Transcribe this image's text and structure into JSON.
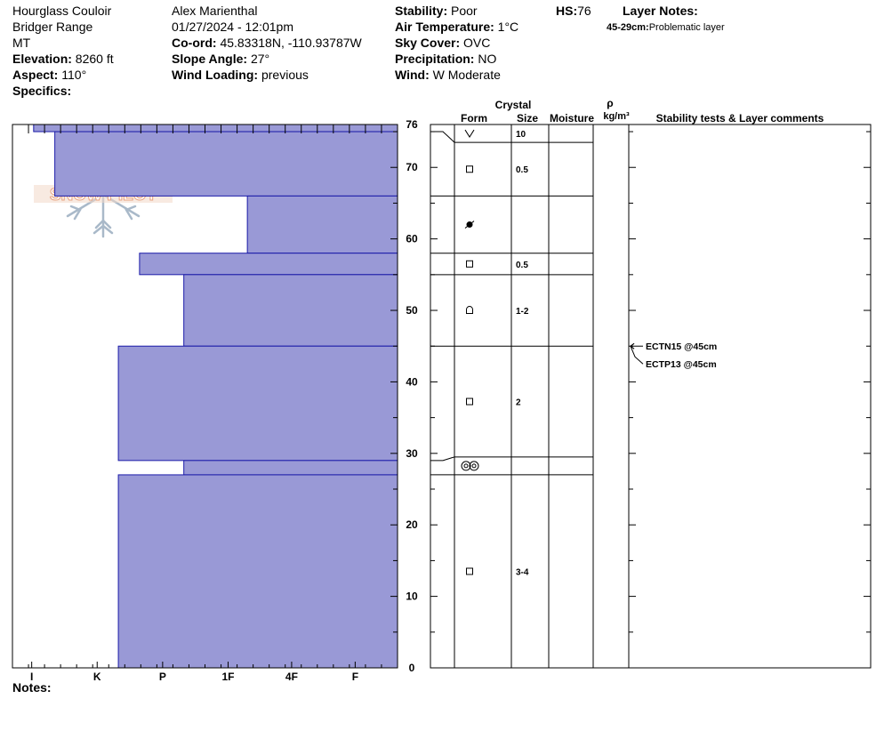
{
  "header": {
    "location": "Hourglass Couloir",
    "range": "Bridger Range",
    "state": "MT",
    "elevation_label": "Elevation:",
    "elevation_value": "8260 ft",
    "aspect_label": "Aspect:",
    "aspect_value": "110°",
    "specifics_label": "Specifics:",
    "observer": "Alex Marienthal",
    "datetime": "01/27/2024 - 12:01pm",
    "coord_label": "Co-ord:",
    "coord_value": "45.83318N, -110.93787W",
    "slope_label": "Slope Angle:",
    "slope_value": "27°",
    "wind_loading_label": "Wind Loading:",
    "wind_loading_value": "previous",
    "stability_label": "Stability:",
    "stability_value": "Poor",
    "air_temp_label": "Air Temperature:",
    "air_temp_value": "1°C",
    "sky_label": "Sky Cover:",
    "sky_value": "OVC",
    "precip_label": "Precipitation:",
    "precip_value": "NO",
    "wind_label": "Wind:",
    "wind_value": "W Moderate",
    "hs_label": "HS:",
    "hs_value": "76",
    "layer_notes_label": "Layer Notes:",
    "layer_note_range": "45-29cm:",
    "layer_note_text": "Problematic layer"
  },
  "logo_text": "SNOW PILOT",
  "notes_label": "Notes:",
  "columns": {
    "crystal": "Crystal",
    "form": "Form",
    "size": "Size",
    "moisture": "Moisture",
    "rho": "ρ",
    "density_unit": "kg/m³",
    "stability": "Stability tests & Layer comments"
  },
  "chart_data": {
    "type": "bar",
    "orientation": "horizontal-step",
    "title": "",
    "ylabel": "",
    "xlabel": "",
    "ylim": [
      0,
      76
    ],
    "y_ticks": [
      0,
      10,
      20,
      30,
      40,
      50,
      60,
      70,
      76
    ],
    "hardness_scale": [
      "I",
      "K",
      "P",
      "1F",
      "4F",
      "F"
    ],
    "hardness_tick_fraction": [
      0.05,
      0.22,
      0.39,
      0.56,
      0.725,
      0.89
    ],
    "layers": [
      {
        "top": 76,
        "bottom": 75,
        "hardness": 0.055
      },
      {
        "top": 75,
        "bottom": 66,
        "hardness": 0.11
      },
      {
        "top": 66,
        "bottom": 58,
        "hardness": 0.61
      },
      {
        "top": 58,
        "bottom": 55,
        "hardness": 0.33
      },
      {
        "top": 55,
        "bottom": 45,
        "hardness": 0.445
      },
      {
        "top": 45,
        "bottom": 29,
        "hardness": 0.275
      },
      {
        "top": 29,
        "bottom": 27,
        "hardness": 0.445
      },
      {
        "top": 27,
        "bottom": 0,
        "hardness": 0.275
      }
    ],
    "grain_layers": [
      {
        "top": 76,
        "bottom": 73.5,
        "form": "precip-particles",
        "size": "10"
      },
      {
        "top": 73.5,
        "bottom": 66,
        "form": "faceted-crystals",
        "size": "0.5"
      },
      {
        "top": 66,
        "bottom": 58,
        "form": "melt-freeze-crust",
        "size": ""
      },
      {
        "top": 58,
        "bottom": 55,
        "form": "faceted-crystals",
        "size": "0.5"
      },
      {
        "top": 55,
        "bottom": 45,
        "form": "rounding-facets",
        "size": "1-2"
      },
      {
        "top": 45,
        "bottom": 29.5,
        "form": "faceted-crystals",
        "size": "2"
      },
      {
        "top": 29.5,
        "bottom": 27,
        "form": "melt-forms-clustered",
        "size": ""
      },
      {
        "top": 27,
        "bottom": 0,
        "form": "faceted-crystals",
        "size": "3-4"
      }
    ],
    "tests": [
      {
        "label": "ECTN15 @45cm",
        "depth": 45
      },
      {
        "label": "ECTP13 @45cm",
        "depth": 45
      }
    ],
    "bar_color": "#9999d6",
    "bar_edge_color": "#1a1aa8"
  }
}
